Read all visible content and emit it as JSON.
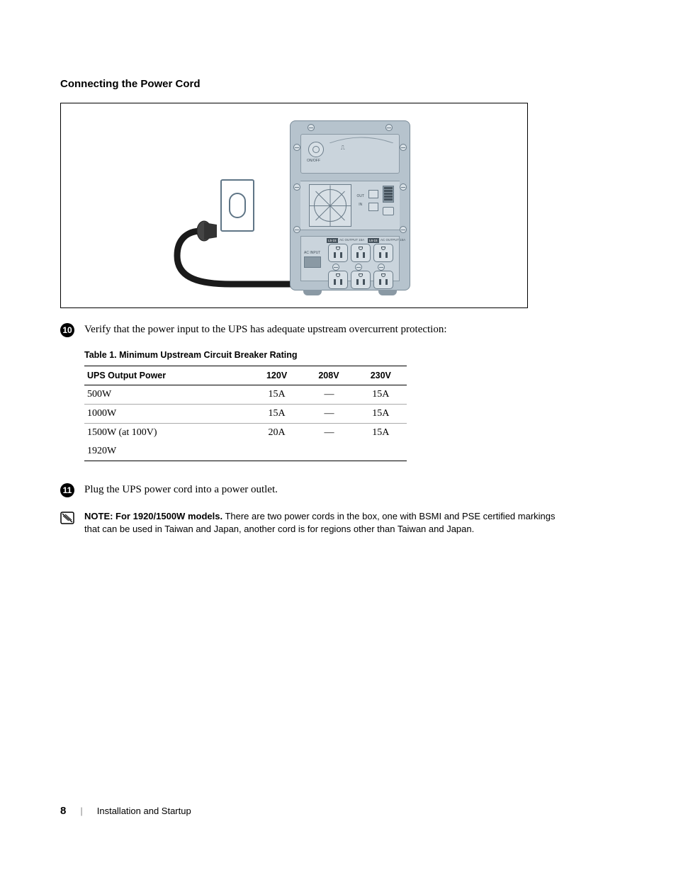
{
  "section_title": "Connecting the Power Cord",
  "figure": {
    "onoff_label": "ON/OFF",
    "out_label": "OUT",
    "in_label": "IN",
    "ac_input_label": "AC INPUT",
    "banner_left": "L5-15",
    "banner_mid_a": "AC OUTPUT 15A",
    "banner_mid_b": "L6-15",
    "banner_right": "AC OUTPUT 15A",
    "colors": {
      "chassis": "#b6c3cd",
      "panel": "#cad4dc",
      "line": "#6b7c89",
      "accent": "#45525c",
      "cord": "#1a1a1a"
    }
  },
  "steps": [
    {
      "num": "10",
      "text": "Verify that the power input to the UPS has adequate upstream overcurrent protection:"
    },
    {
      "num": "11",
      "text": "Plug the UPS power cord into a power outlet."
    }
  ],
  "table": {
    "caption": "Table 1. Minimum Upstream Circuit Breaker Rating",
    "columns": [
      "UPS Output Power",
      "120V",
      "208V",
      "230V"
    ],
    "rows": [
      [
        "500W",
        "15A",
        "—",
        "15A"
      ],
      [
        "1000W",
        "15A",
        "—",
        "15A"
      ],
      [
        "1500W (at 100V)",
        "20A",
        "—",
        "15A"
      ],
      [
        "1920W",
        "",
        "",
        ""
      ]
    ]
  },
  "note": {
    "lead": "NOTE: For 1920/1500W models.",
    "body": " There are two power cords in the box, one with BSMI and PSE certified markings that can be used in Taiwan and Japan, another cord is for regions other than Taiwan and Japan."
  },
  "footer": {
    "page": "8",
    "section": "Installation and Startup"
  }
}
